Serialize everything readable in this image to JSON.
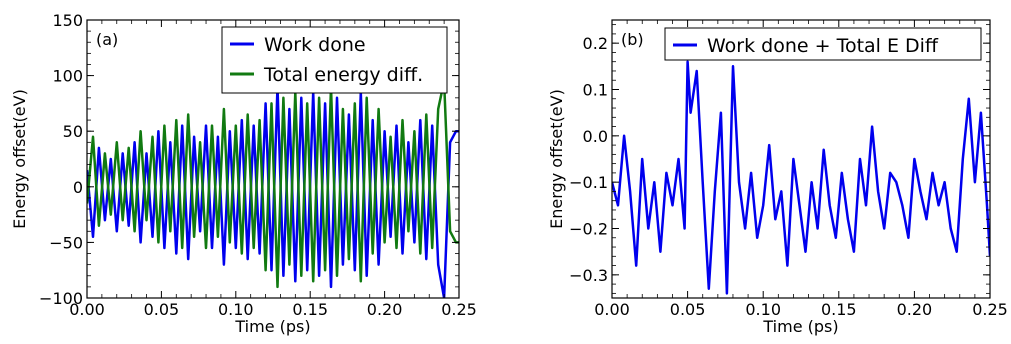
{
  "chart_data": [
    {
      "type": "line",
      "panel_label": "(a)",
      "xlabel": "Time (ps)",
      "ylabel": "Energy offset(eV)",
      "xlim": [
        0.0,
        0.25
      ],
      "ylim": [
        -100,
        150
      ],
      "xticks": [
        0.0,
        0.05,
        0.1,
        0.15,
        0.2,
        0.25
      ],
      "xtick_labels": [
        "0.00",
        "0.05",
        "0.10",
        "0.15",
        "0.20",
        "0.25"
      ],
      "yticks": [
        -100,
        -50,
        0,
        50,
        100,
        150
      ],
      "ytick_labels": [
        "−100",
        "−50",
        "0",
        "50",
        "100",
        "150"
      ],
      "legend_position": "top-right",
      "series": [
        {
          "name": "Work done",
          "color": "#0000ee",
          "x": [
            0.0,
            0.004,
            0.008,
            0.012,
            0.016,
            0.02,
            0.024,
            0.028,
            0.032,
            0.036,
            0.04,
            0.044,
            0.048,
            0.052,
            0.056,
            0.06,
            0.064,
            0.068,
            0.072,
            0.076,
            0.08,
            0.084,
            0.088,
            0.092,
            0.096,
            0.1,
            0.104,
            0.108,
            0.112,
            0.116,
            0.12,
            0.124,
            0.128,
            0.132,
            0.136,
            0.14,
            0.144,
            0.148,
            0.152,
            0.156,
            0.16,
            0.164,
            0.168,
            0.172,
            0.176,
            0.18,
            0.184,
            0.188,
            0.192,
            0.196,
            0.2,
            0.204,
            0.208,
            0.212,
            0.216,
            0.22,
            0.224,
            0.228,
            0.232,
            0.236,
            0.24,
            0.244,
            0.248,
            0.25
          ],
          "y": [
            15,
            -45,
            35,
            -30,
            25,
            -40,
            30,
            -35,
            40,
            -50,
            30,
            -45,
            50,
            -55,
            40,
            -60,
            55,
            -65,
            45,
            -40,
            55,
            -55,
            45,
            -70,
            50,
            -55,
            60,
            -65,
            55,
            -60,
            75,
            -75,
            90,
            -80,
            70,
            -85,
            80,
            -75,
            85,
            -80,
            75,
            -90,
            80,
            -70,
            65,
            -75,
            85,
            -80,
            60,
            -70,
            50,
            -45,
            55,
            -60,
            40,
            -50,
            60,
            -65,
            55,
            -70,
            -100,
            40,
            50,
            50
          ]
        },
        {
          "name": "Total energy diff.",
          "color": "#117a11",
          "x": [
            0.0,
            0.004,
            0.008,
            0.012,
            0.016,
            0.02,
            0.024,
            0.028,
            0.032,
            0.036,
            0.04,
            0.044,
            0.048,
            0.052,
            0.056,
            0.06,
            0.064,
            0.068,
            0.072,
            0.076,
            0.08,
            0.084,
            0.088,
            0.092,
            0.096,
            0.1,
            0.104,
            0.108,
            0.112,
            0.116,
            0.12,
            0.124,
            0.128,
            0.132,
            0.136,
            0.14,
            0.144,
            0.148,
            0.152,
            0.156,
            0.16,
            0.164,
            0.168,
            0.172,
            0.176,
            0.18,
            0.184,
            0.188,
            0.192,
            0.196,
            0.2,
            0.204,
            0.208,
            0.212,
            0.216,
            0.22,
            0.224,
            0.228,
            0.232,
            0.236,
            0.24,
            0.244,
            0.248,
            0.25
          ],
          "y": [
            -15,
            45,
            -35,
            30,
            -25,
            40,
            -30,
            35,
            -40,
            50,
            -30,
            45,
            -50,
            55,
            -40,
            60,
            -55,
            65,
            -45,
            40,
            -55,
            55,
            -45,
            70,
            -50,
            55,
            -60,
            65,
            -55,
            60,
            -75,
            75,
            -90,
            80,
            -70,
            85,
            -80,
            75,
            -85,
            80,
            -75,
            90,
            -80,
            70,
            -65,
            75,
            -85,
            80,
            -60,
            70,
            -50,
            45,
            -55,
            60,
            -40,
            50,
            -60,
            65,
            -55,
            70,
            95,
            -40,
            -50,
            -50
          ]
        }
      ]
    },
    {
      "type": "line",
      "panel_label": "(b)",
      "xlabel": "Time (ps)",
      "ylabel": "Energy offset(eV)",
      "xlim": [
        0.0,
        0.25
      ],
      "ylim": [
        -0.35,
        0.25
      ],
      "xticks": [
        0.0,
        0.05,
        0.1,
        0.15,
        0.2,
        0.25
      ],
      "xtick_labels": [
        "0.00",
        "0.05",
        "0.10",
        "0.15",
        "0.20",
        "0.25"
      ],
      "yticks": [
        -0.3,
        -0.2,
        -0.1,
        0.0,
        0.1,
        0.2
      ],
      "ytick_labels": [
        "−0.3",
        "−0.2",
        "−0.1",
        "0.0",
        "0.1",
        "0.2"
      ],
      "legend_position": "top-right",
      "series": [
        {
          "name": "Work done + Total E Diff",
          "color": "#0000ee",
          "x": [
            0.0,
            0.004,
            0.008,
            0.012,
            0.016,
            0.02,
            0.024,
            0.028,
            0.032,
            0.036,
            0.04,
            0.044,
            0.048,
            0.05,
            0.052,
            0.056,
            0.06,
            0.064,
            0.068,
            0.072,
            0.076,
            0.08,
            0.084,
            0.088,
            0.092,
            0.096,
            0.1,
            0.104,
            0.108,
            0.112,
            0.116,
            0.12,
            0.124,
            0.128,
            0.132,
            0.136,
            0.14,
            0.144,
            0.148,
            0.152,
            0.156,
            0.16,
            0.164,
            0.168,
            0.172,
            0.176,
            0.18,
            0.184,
            0.188,
            0.192,
            0.196,
            0.2,
            0.204,
            0.208,
            0.212,
            0.216,
            0.22,
            0.224,
            0.228,
            0.232,
            0.236,
            0.24,
            0.244,
            0.248,
            0.25
          ],
          "y": [
            -0.1,
            -0.15,
            0.0,
            -0.12,
            -0.28,
            -0.05,
            -0.2,
            -0.1,
            -0.25,
            -0.08,
            -0.15,
            -0.05,
            -0.2,
            0.16,
            0.05,
            0.14,
            -0.1,
            -0.33,
            -0.12,
            0.05,
            -0.34,
            0.15,
            -0.1,
            -0.2,
            -0.08,
            -0.22,
            -0.15,
            -0.02,
            -0.18,
            -0.12,
            -0.28,
            -0.05,
            -0.15,
            -0.25,
            -0.1,
            -0.2,
            -0.03,
            -0.15,
            -0.22,
            -0.08,
            -0.18,
            -0.25,
            -0.05,
            -0.15,
            0.02,
            -0.12,
            -0.2,
            -0.08,
            -0.1,
            -0.15,
            -0.22,
            -0.05,
            -0.12,
            -0.18,
            -0.08,
            -0.15,
            -0.1,
            -0.2,
            -0.25,
            -0.05,
            0.08,
            -0.1,
            0.05,
            -0.15,
            -0.26
          ]
        }
      ]
    }
  ]
}
